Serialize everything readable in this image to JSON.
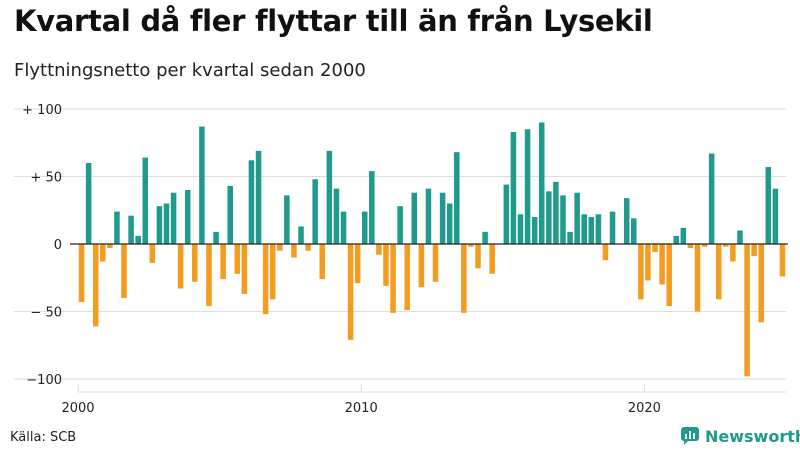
{
  "header": {
    "title": "Kvartal då fler flyttar till än från Lysekil",
    "subtitle": "Flyttningsnetto per kvartal sedan 2000"
  },
  "footer": {
    "source": "Källa: SCB",
    "brand": "Newsworthy"
  },
  "colors": {
    "positive": "#1f9a8c",
    "negative": "#f39c1f",
    "grid": "#dddddd",
    "axis": "#222222",
    "brand": "#1f9a8c"
  },
  "chart_data": {
    "type": "bar",
    "x_start": "2000 Q1",
    "x_end": "2024 Q4",
    "values": [
      -43,
      60,
      -61,
      -13,
      -3,
      24,
      -40,
      21,
      6,
      64,
      -14,
      28,
      30,
      38,
      -33,
      40,
      -28,
      87,
      -46,
      9,
      -26,
      43,
      -22,
      -37,
      62,
      69,
      -52,
      -41,
      -5,
      36,
      -10,
      13,
      -5,
      48,
      -26,
      69,
      41,
      24,
      -71,
      -29,
      24,
      54,
      -8,
      -31,
      -51,
      28,
      -49,
      38,
      -32,
      41,
      -28,
      38,
      30,
      68,
      -51,
      -2,
      -18,
      9,
      -22,
      0,
      44,
      83,
      22,
      85,
      20,
      90,
      39,
      46,
      36,
      9,
      38,
      22,
      20,
      22,
      -12,
      24,
      0,
      34,
      19,
      -41,
      -27,
      -6,
      -30,
      -46,
      6,
      12,
      -3,
      -50,
      -2,
      67,
      -41,
      -2,
      -13,
      10,
      -98,
      -9,
      -58,
      57,
      41,
      -24
    ],
    "ylim": [
      -100,
      100
    ],
    "y_ticks": [
      {
        "value": 100,
        "label": "+ 100"
      },
      {
        "value": 50,
        "label": "+  50"
      },
      {
        "value": 0,
        "label": "0"
      },
      {
        "value": -50,
        "label": "− 50"
      },
      {
        "value": -100,
        "label": "−100"
      }
    ],
    "x_ticks": [
      {
        "year": 2000,
        "label": "2000"
      },
      {
        "year": 2010,
        "label": "2010"
      },
      {
        "year": 2020,
        "label": "2020"
      }
    ],
    "title": "Kvartal då fler flyttar till än från Lysekil",
    "subtitle": "Flyttningsnetto per kvartal sedan 2000",
    "xlabel": "",
    "ylabel": "",
    "grid": true,
    "legend": "none"
  }
}
